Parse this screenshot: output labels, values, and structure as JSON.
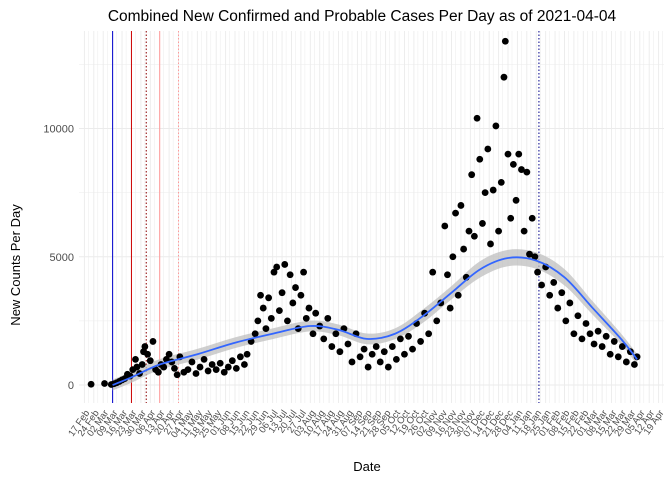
{
  "chart_data": {
    "type": "scatter",
    "title": "Combined New Confirmed and Probable Cases Per Day as of 2021-04-04",
    "xlabel": "Date",
    "ylabel": "New Counts Per Day",
    "x_range": [
      "2020-02-13",
      "2021-04-23"
    ],
    "ylim": [
      -700,
      13800
    ],
    "y_ticks": [
      0,
      5000,
      10000
    ],
    "x_tick_labels": [
      "17 Feb",
      "24 Feb",
      "02 Mar",
      "09 Mar",
      "16 Mar",
      "23 Mar",
      "30 Mar",
      "06 Apr",
      "13 Apr",
      "20 Apr",
      "27 Apr",
      "04 May",
      "11 May",
      "18 May",
      "25 May",
      "01 Jun",
      "08 Jun",
      "15 Jun",
      "22 Jun",
      "29 Jun",
      "06 Jul",
      "13 Jul",
      "20 Jul",
      "27 Jul",
      "03 Aug",
      "10 Aug",
      "17 Aug",
      "24 Aug",
      "31 Aug",
      "07 Sep",
      "14 Sep",
      "21 Sep",
      "28 Sep",
      "05 Oct",
      "12 Oct",
      "19 Oct",
      "26 Oct",
      "02 Nov",
      "09 Nov",
      "16 Nov",
      "23 Nov",
      "30 Nov",
      "07 Dec",
      "14 Dec",
      "21 Dec",
      "28 Dec",
      "04 Jan",
      "11 Jan",
      "18 Jan",
      "25 Jan",
      "01 Feb",
      "08 Feb",
      "15 Feb",
      "22 Feb",
      "01 Mar",
      "08 Mar",
      "15 Mar",
      "22 Mar",
      "29 Mar",
      "05 Apr",
      "12 Apr",
      "19 Apr"
    ],
    "x_tick_dates": [
      "2020-02-17",
      "2020-02-24",
      "2020-03-02",
      "2020-03-09",
      "2020-03-16",
      "2020-03-23",
      "2020-03-30",
      "2020-04-06",
      "2020-04-13",
      "2020-04-20",
      "2020-04-27",
      "2020-05-04",
      "2020-05-11",
      "2020-05-18",
      "2020-05-25",
      "2020-06-01",
      "2020-06-08",
      "2020-06-15",
      "2020-06-22",
      "2020-06-29",
      "2020-07-06",
      "2020-07-13",
      "2020-07-20",
      "2020-07-27",
      "2020-08-03",
      "2020-08-10",
      "2020-08-17",
      "2020-08-24",
      "2020-08-31",
      "2020-09-07",
      "2020-09-14",
      "2020-09-21",
      "2020-09-28",
      "2020-10-05",
      "2020-10-12",
      "2020-10-19",
      "2020-10-26",
      "2020-11-02",
      "2020-11-09",
      "2020-11-16",
      "2020-11-23",
      "2020-11-30",
      "2020-12-07",
      "2020-12-14",
      "2020-12-21",
      "2020-12-28",
      "2021-01-04",
      "2021-01-11",
      "2021-01-18",
      "2021-01-25",
      "2021-02-01",
      "2021-02-08",
      "2021-02-15",
      "2021-02-22",
      "2021-03-01",
      "2021-03-08",
      "2021-03-15",
      "2021-03-22",
      "2021-03-29",
      "2021-04-05",
      "2021-04-12",
      "2021-04-19"
    ],
    "grid": true,
    "legend": "none",
    "colors": {
      "points": "#000000",
      "smooth_line": "#3366ff",
      "smooth_band": "#bfbfbf",
      "grid": "#ebebeb",
      "vline_blue": "#0000cc",
      "vline_red": "#cc0000",
      "vline_dotted": "#8b0000",
      "vline_pink": "#ff9999"
    },
    "vlines": [
      {
        "date": "2020-03-09",
        "color": "#0000cc",
        "style": "solid"
      },
      {
        "date": "2020-03-23",
        "color": "#cc0000",
        "style": "solid"
      },
      {
        "date": "2020-04-03",
        "color": "#8b0000",
        "style": "dotted"
      },
      {
        "date": "2020-04-13",
        "color": "#ff9999",
        "style": "solid"
      },
      {
        "date": "2020-04-27",
        "color": "#ff9999",
        "style": "dotted"
      },
      {
        "date": "2021-01-20",
        "color": "#00008b",
        "style": "dotted"
      }
    ],
    "smooth_line": [
      {
        "x": "2020-03-09",
        "y": 0
      },
      {
        "x": "2020-03-23",
        "y": 300
      },
      {
        "x": "2020-04-13",
        "y": 800
      },
      {
        "x": "2020-05-11",
        "y": 1200
      },
      {
        "x": "2020-06-08",
        "y": 1650
      },
      {
        "x": "2020-07-06",
        "y": 2000
      },
      {
        "x": "2020-08-03",
        "y": 2300
      },
      {
        "x": "2020-08-24",
        "y": 2150
      },
      {
        "x": "2020-09-14",
        "y": 1800
      },
      {
        "x": "2020-10-05",
        "y": 2000
      },
      {
        "x": "2020-10-26",
        "y": 2700
      },
      {
        "x": "2020-11-16",
        "y": 3600
      },
      {
        "x": "2020-12-07",
        "y": 4500
      },
      {
        "x": "2020-12-28",
        "y": 4950
      },
      {
        "x": "2021-01-18",
        "y": 4850
      },
      {
        "x": "2021-02-08",
        "y": 4200
      },
      {
        "x": "2021-03-01",
        "y": 3000
      },
      {
        "x": "2021-03-22",
        "y": 1800
      },
      {
        "x": "2021-04-03",
        "y": 1000
      }
    ],
    "series": [
      {
        "points": [
          {
            "x": "2020-02-22",
            "y": 30
          },
          {
            "x": "2020-03-03",
            "y": 60
          },
          {
            "x": "2020-03-08",
            "y": 20
          },
          {
            "x": "2020-03-10",
            "y": 50
          },
          {
            "x": "2020-03-12",
            "y": 90
          },
          {
            "x": "2020-03-14",
            "y": 140
          },
          {
            "x": "2020-03-16",
            "y": 200
          },
          {
            "x": "2020-03-18",
            "y": 250
          },
          {
            "x": "2020-03-20",
            "y": 420
          },
          {
            "x": "2020-03-22",
            "y": 350
          },
          {
            "x": "2020-03-24",
            "y": 600
          },
          {
            "x": "2020-03-26",
            "y": 1000
          },
          {
            "x": "2020-03-27",
            "y": 700
          },
          {
            "x": "2020-03-29",
            "y": 450
          },
          {
            "x": "2020-03-31",
            "y": 800
          },
          {
            "x": "2020-04-01",
            "y": 1300
          },
          {
            "x": "2020-04-02",
            "y": 1500
          },
          {
            "x": "2020-04-04",
            "y": 1200
          },
          {
            "x": "2020-04-06",
            "y": 950
          },
          {
            "x": "2020-04-08",
            "y": 1700
          },
          {
            "x": "2020-04-10",
            "y": 600
          },
          {
            "x": "2020-04-12",
            "y": 500
          },
          {
            "x": "2020-04-14",
            "y": 800
          },
          {
            "x": "2020-04-16",
            "y": 700
          },
          {
            "x": "2020-04-18",
            "y": 1000
          },
          {
            "x": "2020-04-20",
            "y": 1200
          },
          {
            "x": "2020-04-22",
            "y": 900
          },
          {
            "x": "2020-04-24",
            "y": 650
          },
          {
            "x": "2020-04-26",
            "y": 400
          },
          {
            "x": "2020-04-28",
            "y": 1100
          },
          {
            "x": "2020-05-01",
            "y": 500
          },
          {
            "x": "2020-05-04",
            "y": 600
          },
          {
            "x": "2020-05-07",
            "y": 900
          },
          {
            "x": "2020-05-10",
            "y": 450
          },
          {
            "x": "2020-05-13",
            "y": 700
          },
          {
            "x": "2020-05-16",
            "y": 1000
          },
          {
            "x": "2020-05-19",
            "y": 550
          },
          {
            "x": "2020-05-22",
            "y": 800
          },
          {
            "x": "2020-05-25",
            "y": 600
          },
          {
            "x": "2020-05-28",
            "y": 850
          },
          {
            "x": "2020-05-31",
            "y": 500
          },
          {
            "x": "2020-06-03",
            "y": 700
          },
          {
            "x": "2020-06-06",
            "y": 950
          },
          {
            "x": "2020-06-09",
            "y": 650
          },
          {
            "x": "2020-06-12",
            "y": 1100
          },
          {
            "x": "2020-06-15",
            "y": 800
          },
          {
            "x": "2020-06-17",
            "y": 1200
          },
          {
            "x": "2020-06-20",
            "y": 1700
          },
          {
            "x": "2020-06-23",
            "y": 2000
          },
          {
            "x": "2020-06-25",
            "y": 2500
          },
          {
            "x": "2020-06-27",
            "y": 3500
          },
          {
            "x": "2020-06-29",
            "y": 3000
          },
          {
            "x": "2020-07-01",
            "y": 2200
          },
          {
            "x": "2020-07-03",
            "y": 3400
          },
          {
            "x": "2020-07-05",
            "y": 2600
          },
          {
            "x": "2020-07-07",
            "y": 4400
          },
          {
            "x": "2020-07-09",
            "y": 4600
          },
          {
            "x": "2020-07-11",
            "y": 2900
          },
          {
            "x": "2020-07-13",
            "y": 3600
          },
          {
            "x": "2020-07-15",
            "y": 4700
          },
          {
            "x": "2020-07-17",
            "y": 2500
          },
          {
            "x": "2020-07-19",
            "y": 4300
          },
          {
            "x": "2020-07-21",
            "y": 3200
          },
          {
            "x": "2020-07-23",
            "y": 3800
          },
          {
            "x": "2020-07-25",
            "y": 2200
          },
          {
            "x": "2020-07-27",
            "y": 3500
          },
          {
            "x": "2020-07-29",
            "y": 4400
          },
          {
            "x": "2020-07-31",
            "y": 2600
          },
          {
            "x": "2020-08-02",
            "y": 3000
          },
          {
            "x": "2020-08-05",
            "y": 2000
          },
          {
            "x": "2020-08-07",
            "y": 2800
          },
          {
            "x": "2020-08-10",
            "y": 2300
          },
          {
            "x": "2020-08-13",
            "y": 1800
          },
          {
            "x": "2020-08-16",
            "y": 2600
          },
          {
            "x": "2020-08-19",
            "y": 1500
          },
          {
            "x": "2020-08-22",
            "y": 2000
          },
          {
            "x": "2020-08-25",
            "y": 1300
          },
          {
            "x": "2020-08-28",
            "y": 2200
          },
          {
            "x": "2020-08-31",
            "y": 1600
          },
          {
            "x": "2020-09-03",
            "y": 900
          },
          {
            "x": "2020-09-06",
            "y": 2000
          },
          {
            "x": "2020-09-09",
            "y": 1100
          },
          {
            "x": "2020-09-12",
            "y": 1400
          },
          {
            "x": "2020-09-15",
            "y": 700
          },
          {
            "x": "2020-09-18",
            "y": 1200
          },
          {
            "x": "2020-09-21",
            "y": 1500
          },
          {
            "x": "2020-09-24",
            "y": 900
          },
          {
            "x": "2020-09-27",
            "y": 1300
          },
          {
            "x": "2020-09-30",
            "y": 700
          },
          {
            "x": "2020-10-03",
            "y": 1500
          },
          {
            "x": "2020-10-06",
            "y": 1000
          },
          {
            "x": "2020-10-09",
            "y": 1800
          },
          {
            "x": "2020-10-12",
            "y": 1200
          },
          {
            "x": "2020-10-15",
            "y": 1900
          },
          {
            "x": "2020-10-18",
            "y": 1400
          },
          {
            "x": "2020-10-21",
            "y": 2400
          },
          {
            "x": "2020-10-24",
            "y": 1700
          },
          {
            "x": "2020-10-27",
            "y": 2800
          },
          {
            "x": "2020-10-30",
            "y": 2000
          },
          {
            "x": "2020-11-02",
            "y": 4400
          },
          {
            "x": "2020-11-05",
            "y": 2500
          },
          {
            "x": "2020-11-08",
            "y": 3200
          },
          {
            "x": "2020-11-11",
            "y": 6200
          },
          {
            "x": "2020-11-13",
            "y": 4300
          },
          {
            "x": "2020-11-15",
            "y": 3000
          },
          {
            "x": "2020-11-17",
            "y": 5000
          },
          {
            "x": "2020-11-19",
            "y": 6700
          },
          {
            "x": "2020-11-21",
            "y": 3500
          },
          {
            "x": "2020-11-23",
            "y": 7000
          },
          {
            "x": "2020-11-25",
            "y": 5300
          },
          {
            "x": "2020-11-27",
            "y": 4200
          },
          {
            "x": "2020-11-29",
            "y": 6000
          },
          {
            "x": "2020-12-01",
            "y": 8200
          },
          {
            "x": "2020-12-03",
            "y": 5800
          },
          {
            "x": "2020-12-05",
            "y": 10400
          },
          {
            "x": "2020-12-07",
            "y": 8800
          },
          {
            "x": "2020-12-09",
            "y": 6300
          },
          {
            "x": "2020-12-11",
            "y": 7500
          },
          {
            "x": "2020-12-13",
            "y": 9200
          },
          {
            "x": "2020-12-15",
            "y": 5500
          },
          {
            "x": "2020-12-17",
            "y": 7600
          },
          {
            "x": "2020-12-19",
            "y": 10100
          },
          {
            "x": "2020-12-21",
            "y": 6000
          },
          {
            "x": "2020-12-23",
            "y": 7900
          },
          {
            "x": "2020-12-25",
            "y": 12000
          },
          {
            "x": "2020-12-26",
            "y": 13400
          },
          {
            "x": "2020-12-28",
            "y": 9000
          },
          {
            "x": "2020-12-30",
            "y": 6500
          },
          {
            "x": "2021-01-01",
            "y": 8600
          },
          {
            "x": "2021-01-03",
            "y": 7200
          },
          {
            "x": "2021-01-05",
            "y": 9000
          },
          {
            "x": "2021-01-07",
            "y": 8400
          },
          {
            "x": "2021-01-09",
            "y": 6000
          },
          {
            "x": "2021-01-11",
            "y": 8300
          },
          {
            "x": "2021-01-13",
            "y": 5100
          },
          {
            "x": "2021-01-15",
            "y": 6500
          },
          {
            "x": "2021-01-17",
            "y": 5000
          },
          {
            "x": "2021-01-19",
            "y": 4400
          },
          {
            "x": "2021-01-22",
            "y": 3900
          },
          {
            "x": "2021-01-25",
            "y": 4600
          },
          {
            "x": "2021-01-28",
            "y": 3500
          },
          {
            "x": "2021-01-31",
            "y": 4000
          },
          {
            "x": "2021-02-03",
            "y": 3000
          },
          {
            "x": "2021-02-06",
            "y": 3600
          },
          {
            "x": "2021-02-09",
            "y": 2500
          },
          {
            "x": "2021-02-12",
            "y": 3200
          },
          {
            "x": "2021-02-15",
            "y": 2000
          },
          {
            "x": "2021-02-18",
            "y": 2700
          },
          {
            "x": "2021-02-21",
            "y": 1800
          },
          {
            "x": "2021-02-24",
            "y": 2400
          },
          {
            "x": "2021-02-27",
            "y": 2000
          },
          {
            "x": "2021-03-02",
            "y": 1600
          },
          {
            "x": "2021-03-05",
            "y": 2100
          },
          {
            "x": "2021-03-08",
            "y": 1500
          },
          {
            "x": "2021-03-11",
            "y": 1900
          },
          {
            "x": "2021-03-14",
            "y": 1200
          },
          {
            "x": "2021-03-17",
            "y": 1700
          },
          {
            "x": "2021-03-20",
            "y": 1100
          },
          {
            "x": "2021-03-23",
            "y": 1500
          },
          {
            "x": "2021-03-26",
            "y": 900
          },
          {
            "x": "2021-03-29",
            "y": 1300
          },
          {
            "x": "2021-04-01",
            "y": 800
          },
          {
            "x": "2021-04-03",
            "y": 1100
          }
        ]
      }
    ]
  }
}
